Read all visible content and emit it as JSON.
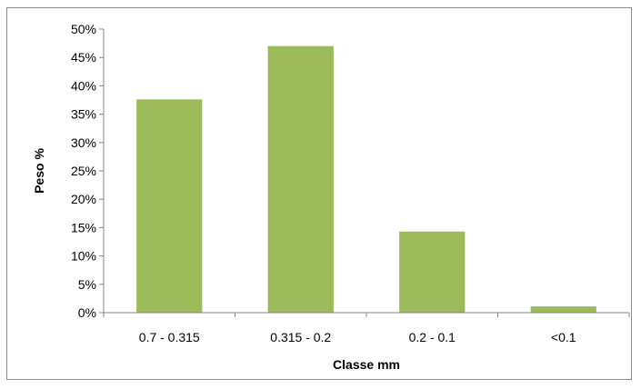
{
  "chart_data": {
    "type": "bar",
    "title": "",
    "xlabel": "Classe mm",
    "ylabel": "Peso %",
    "categories": [
      "0.7 - 0.315",
      "0.315 - 0.2",
      "0.2 - 0.1",
      "<0.1"
    ],
    "values": [
      0.376,
      0.47,
      0.143,
      0.011
    ],
    "ylim": [
      0,
      0.5
    ],
    "yticks": [
      0,
      0.05,
      0.1,
      0.15,
      0.2,
      0.25,
      0.3,
      0.35,
      0.4,
      0.45,
      0.5
    ],
    "ytick_labels": [
      "0%",
      "5%",
      "10%",
      "15%",
      "20%",
      "25%",
      "30%",
      "35%",
      "40%",
      "45%",
      "50%"
    ],
    "grid": false,
    "legend": "none",
    "bar_color": "#9bbb59",
    "axis_color": "#868686"
  }
}
